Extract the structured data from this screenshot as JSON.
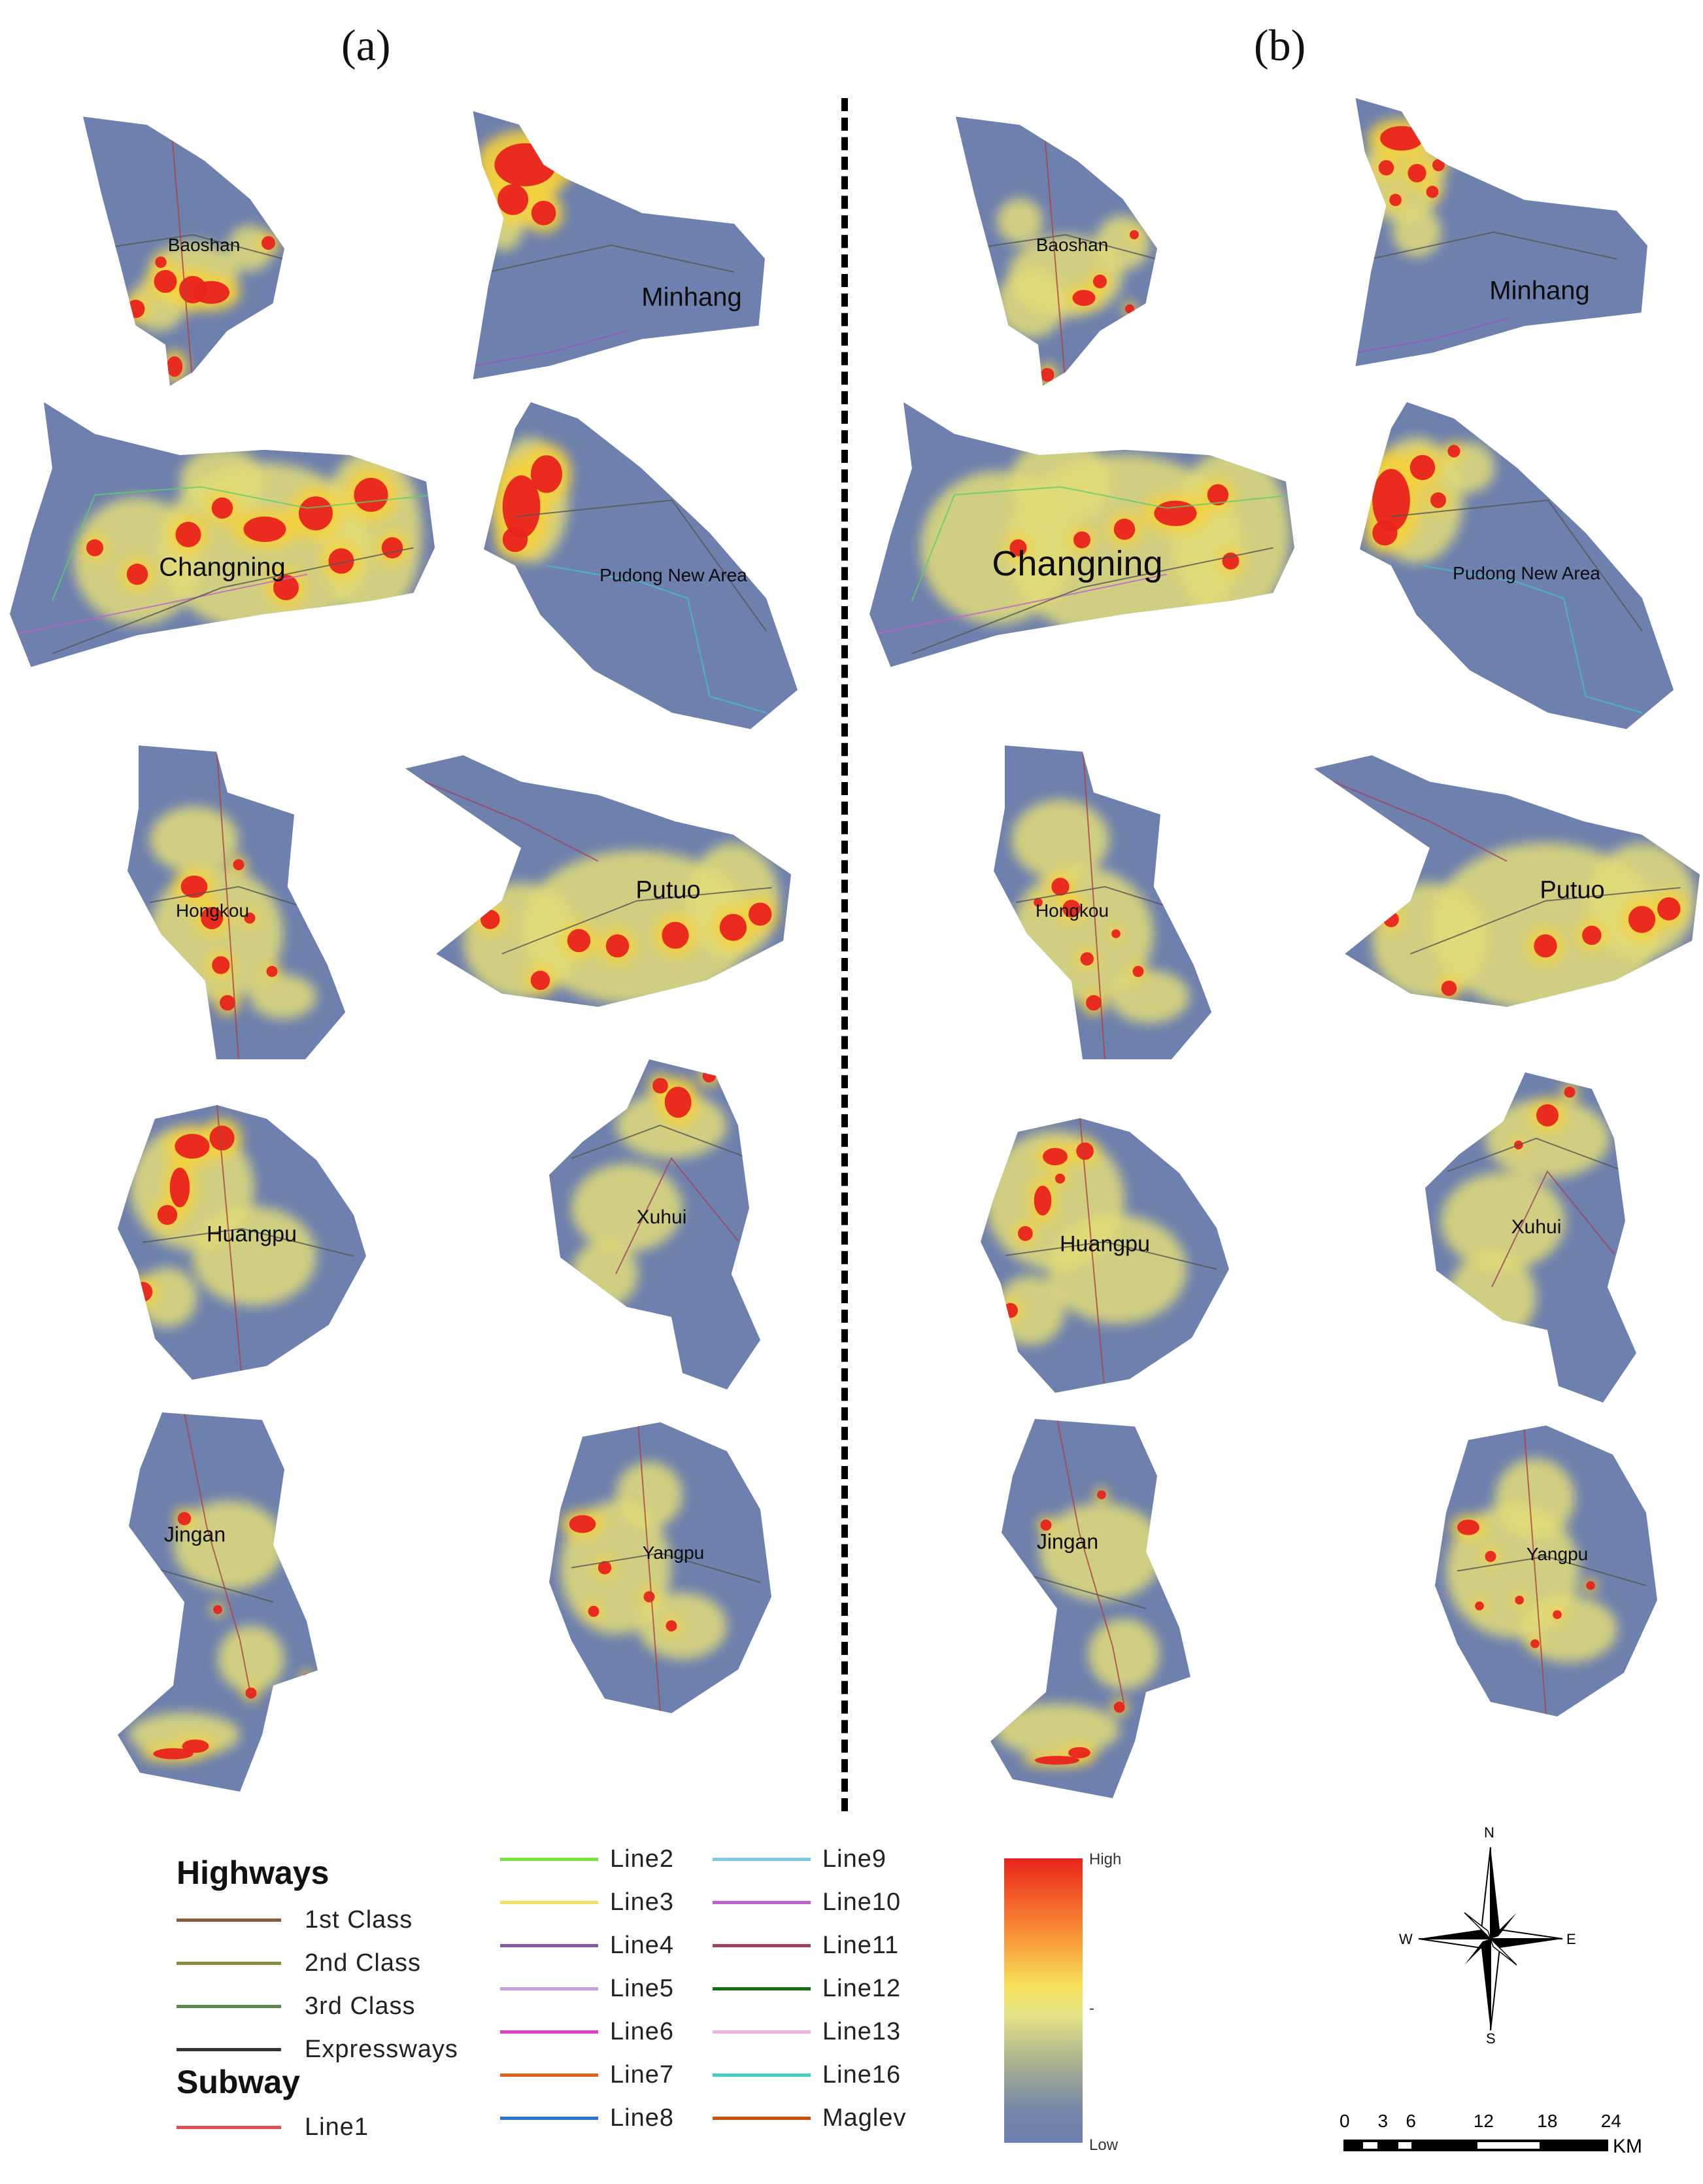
{
  "panels": {
    "left": "(a)",
    "right": "(b)"
  },
  "districts": {
    "baoshan": "Baoshan",
    "minhang": "Minhang",
    "changning": "Changning",
    "pudong": "Pudong New Area",
    "hongkou": "Hongkou",
    "putuo": "Putuo",
    "huangpu": "Huangpu",
    "xuhui": "Xuhui",
    "jingan": "Jingan",
    "yangpu": "Yangpu"
  },
  "legend": {
    "highways_title": "Highways",
    "subway_title": "Subway",
    "highways": [
      {
        "label": "1st Class",
        "color": "#8a5a3c"
      },
      {
        "label": "2nd Class",
        "color": "#8a8a3c"
      },
      {
        "label": "3rd Class",
        "color": "#5a8a4a"
      },
      {
        "label": "Expressways",
        "color": "#333333"
      }
    ],
    "subway_col1": [
      {
        "label": "Line1",
        "color": "#e05050"
      }
    ],
    "subway_col2": [
      {
        "label": "Line2",
        "color": "#7ee040"
      },
      {
        "label": "Line3",
        "color": "#f0e060"
      },
      {
        "label": "Line4",
        "color": "#8a5aa0"
      },
      {
        "label": "Line5",
        "color": "#c8a0e0"
      },
      {
        "label": "Line6",
        "color": "#e040c0"
      },
      {
        "label": "Line7",
        "color": "#e06020"
      },
      {
        "label": "Line8",
        "color": "#3070d0"
      }
    ],
    "subway_col3": [
      {
        "label": "Line9",
        "color": "#80c8e8"
      },
      {
        "label": "Line10",
        "color": "#c060d0"
      },
      {
        "label": "Line11",
        "color": "#a04060"
      },
      {
        "label": "Line12",
        "color": "#107010"
      },
      {
        "label": "Line13",
        "color": "#f0b0e0"
      },
      {
        "label": "Line16",
        "color": "#40d0c0"
      },
      {
        "label": "Maglev",
        "color": "#d05010"
      }
    ]
  },
  "colorbar": {
    "high": "High",
    "low": "Low",
    "colors": [
      "#e8231c",
      "#f7e25c",
      "#6d7fb0"
    ]
  },
  "compass": {
    "n": "N",
    "s": "S",
    "e": "E",
    "w": "W"
  },
  "scale": {
    "ticks": [
      "0",
      "3",
      "6",
      "12",
      "18",
      "24"
    ],
    "unit": "KM"
  }
}
